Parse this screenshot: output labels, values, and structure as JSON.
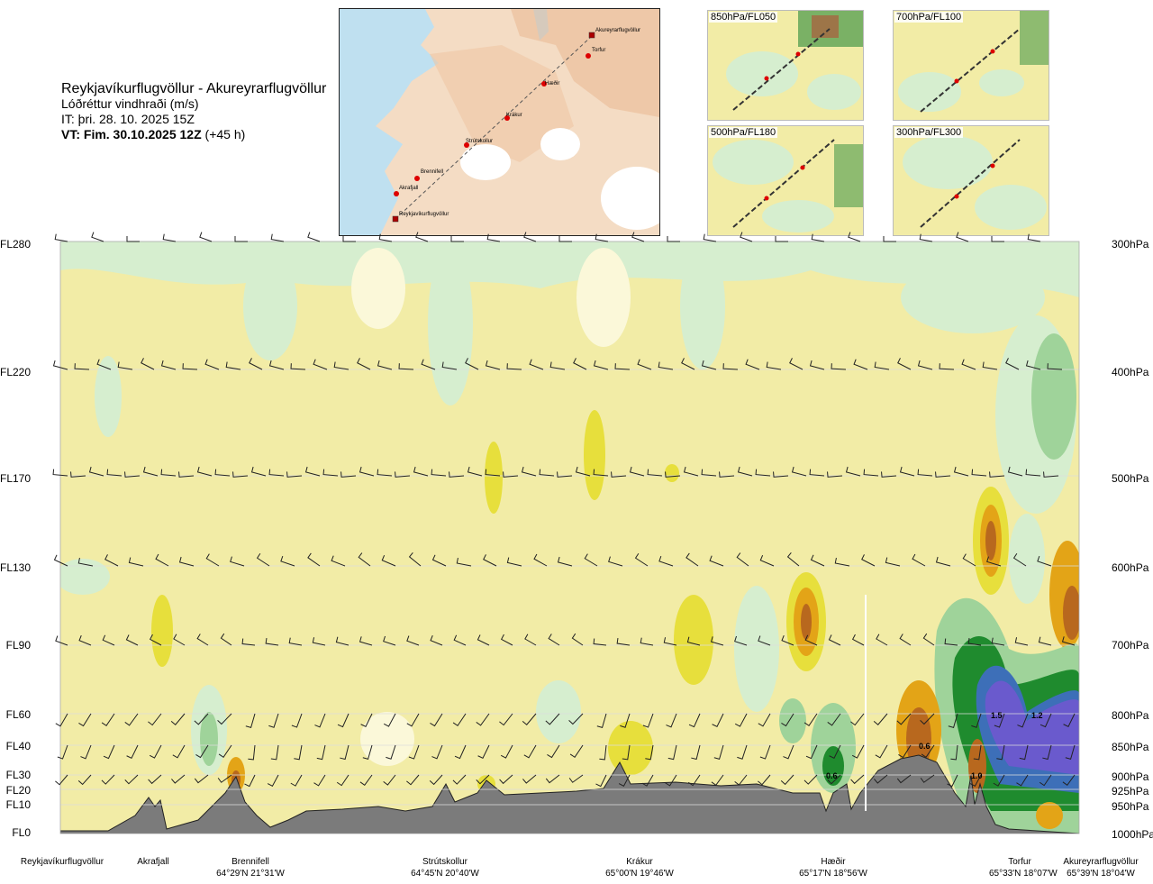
{
  "header": {
    "route": "Reykjavíkurflugvöllur - Akureyrarflugvöllur",
    "parameter": "Lóðréttur vindhraði (m/s)",
    "issue_time": "IT: þri. 28. 10. 2025 15Z",
    "valid_time": "VT: Fim. 30.10.2025 12Z",
    "lead_time": "(+45 h)"
  },
  "map": {
    "places": [
      {
        "name": "Akureyrarflugvöllur"
      },
      {
        "name": "Torfur"
      },
      {
        "name": "Hæðir"
      },
      {
        "name": "Krákur"
      },
      {
        "name": "Strútskollur"
      },
      {
        "name": "Brennifell"
      },
      {
        "name": "Akrafjall"
      },
      {
        "name": "Reykjavíkurflugvöllur"
      }
    ]
  },
  "insets": [
    {
      "label": "850hPa/FL050"
    },
    {
      "label": "700hPa/FL100"
    },
    {
      "label": "500hPa/FL180"
    },
    {
      "label": "300hPa/FL300"
    }
  ],
  "colors": {
    "terrain": "#7b7b7b",
    "neutral": "#f2eca6",
    "green_light": "#d6eecf",
    "green_mid": "#9fd39a",
    "green_dark": "#1f8b2e",
    "blue": "#3d6fb8",
    "purple": "#6a5acd",
    "yellow": "#e7df3c",
    "orange": "#e3a417",
    "brown": "#b8681e"
  },
  "chart_data": {
    "type": "heatmap",
    "title": "Reykjavíkurflugvöllur - Akureyrarflugvöllur",
    "variable": "Lóðréttur vindhraði (m/s)",
    "y_left_levels": [
      "FL280",
      "FL220",
      "FL170",
      "FL130",
      "FL90",
      "FL60",
      "FL40",
      "FL30",
      "FL20",
      "FL10",
      "FL0"
    ],
    "y_right_levels": [
      "300hPa",
      "400hPa",
      "500hPa",
      "600hPa",
      "700hPa",
      "800hPa",
      "850hPa",
      "900hPa",
      "925hPa",
      "950hPa",
      "1000hPa"
    ],
    "x_locations": [
      {
        "name": "Reykjavíkurflugvöllur",
        "coord": ""
      },
      {
        "name": "Akrafjall",
        "coord": ""
      },
      {
        "name": "Brennifell",
        "coord": "64°29'N 21°31'W"
      },
      {
        "name": "Strútskollur",
        "coord": "64°45'N 20°40'W"
      },
      {
        "name": "Krákur",
        "coord": "65°00'N 19°46'W"
      },
      {
        "name": "Hæðir",
        "coord": "65°17'N 18°56'W"
      },
      {
        "name": "Torfur",
        "coord": "65°33'N 18°07'W"
      },
      {
        "name": "Akureyrarflugvöllur",
        "coord": "65°39'N 18°04'W"
      }
    ],
    "contour_labels": [
      "1.5",
      "1.2",
      "0.6",
      "0.6",
      "1.0"
    ],
    "legend": "none",
    "grid": true
  }
}
